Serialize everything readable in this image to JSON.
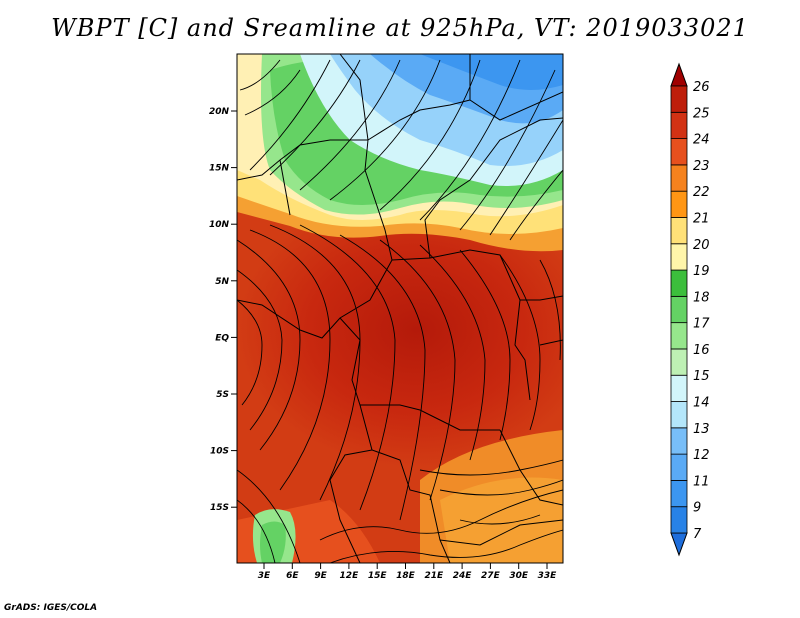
{
  "title": "WBPT [C] and Sreamline at 925hPa, VT: 2019033021",
  "credit": "GrADS: IGES/COLA",
  "map": {
    "lat_ticks": [
      "20N",
      "15N",
      "10N",
      "5N",
      "EQ",
      "5S",
      "10S",
      "15S"
    ],
    "lon_ticks": [
      "3E",
      "6E",
      "9E",
      "12E",
      "15E",
      "18E",
      "21E",
      "24E",
      "27E",
      "30E",
      "33E"
    ],
    "region": {
      "lon_range": [
        0,
        35
      ],
      "lat_range": [
        -20,
        24
      ]
    }
  },
  "colorbar": {
    "labels": [
      "7",
      "9",
      "11",
      "12",
      "13",
      "14",
      "15",
      "16",
      "17",
      "18",
      "19",
      "20",
      "21",
      "22",
      "23",
      "24",
      "25",
      "26"
    ],
    "colors": [
      "#1e6edc",
      "#2882e6",
      "#3c96f0",
      "#5aaaf5",
      "#78bef8",
      "#96d2fa",
      "#b4e6fa",
      "#d2f5fa",
      "#bef0b4",
      "#96e68c",
      "#64d264",
      "#3cbe3c",
      "#fff5aa",
      "#ffe178",
      "#ffbe3c",
      "#ff9614",
      "#f5821e",
      "#e6501e",
      "#d23214",
      "#be1e0a",
      "#a00000"
    ]
  }
}
